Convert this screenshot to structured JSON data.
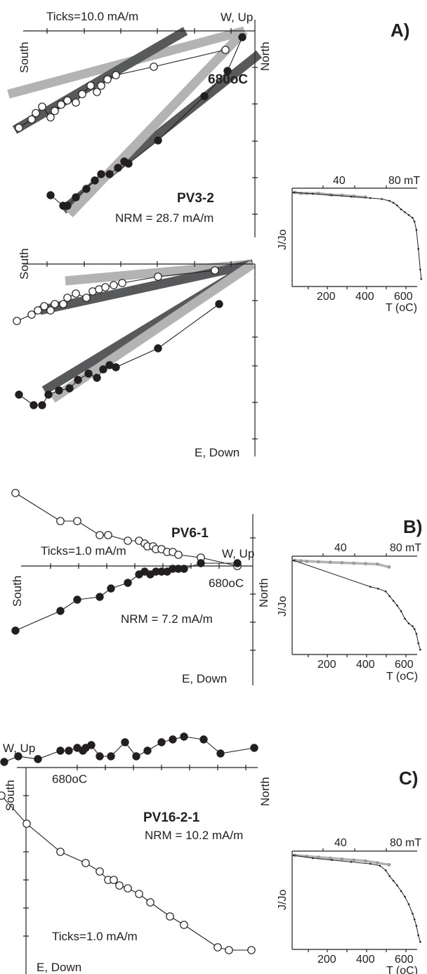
{
  "chart_data": [
    {
      "panel": "A)",
      "type": "scatter",
      "sample": "PV3-2",
      "nrm": "NRM = 28.7 mA/m",
      "ticks_label": "Ticks=10.0 mA/m",
      "temp_label": "680oC",
      "axis_labels": {
        "south": "South",
        "north": "North",
        "up": "W, Up",
        "down": "E, Down"
      },
      "colors": {
        "fit_light": "#b3b3b3",
        "fit_dark": "#58595b",
        "ink": "#231f20"
      },
      "plot1": {
        "open_points": [
          [
            -10.7,
            -4.6
          ],
          [
            -10.1,
            -4.2
          ],
          [
            -9.9,
            -3.9
          ],
          [
            -9.6,
            -3.6
          ],
          [
            -9.2,
            -4.1
          ],
          [
            -9.0,
            -3.8
          ],
          [
            -8.7,
            -3.5
          ],
          [
            -8.4,
            -3.3
          ],
          [
            -8.0,
            -3.4
          ],
          [
            -7.7,
            -3.0
          ],
          [
            -7.3,
            -2.6
          ],
          [
            -7.0,
            -2.9
          ],
          [
            -6.8,
            -2.6
          ],
          [
            -6.5,
            -2.3
          ],
          [
            -6.1,
            -2.1
          ],
          [
            -4.3,
            -1.7
          ],
          [
            -0.9,
            -0.9
          ]
        ],
        "closed_points": [
          [
            -9.2,
            -7.8
          ],
          [
            -8.6,
            -8.3
          ],
          [
            -8.4,
            -8.3
          ],
          [
            -8.0,
            -7.9
          ],
          [
            -7.5,
            -7.5
          ],
          [
            -7.1,
            -7.1
          ],
          [
            -6.8,
            -6.8
          ],
          [
            -6.4,
            -6.8
          ],
          [
            -6.0,
            -6.5
          ],
          [
            -5.7,
            -6.2
          ],
          [
            -5.5,
            -6.3
          ],
          [
            -4.1,
            -5.2
          ],
          [
            -1.9,
            -3.1
          ],
          [
            -0.8,
            -1.9
          ],
          [
            -0.1,
            -0.3
          ]
        ],
        "fits": [
          {
            "color": "fit_light",
            "from": [
              -11.2,
              -3.0
            ],
            "to": [
              0.0,
              0.0
            ]
          },
          {
            "color": "fit_dark",
            "from": [
              -10.9,
              -4.7
            ],
            "to": [
              -2.8,
              0.0
            ]
          },
          {
            "color": "fit_dark",
            "from": [
              -8.6,
              -8.5
            ],
            "to": [
              0.7,
              -1.1
            ]
          },
          {
            "color": "fit_light",
            "from": [
              -8.3,
              -8.7
            ],
            "to": [
              0.0,
              0.0
            ]
          }
        ]
      },
      "plot2": {
        "open_points": [
          [
            -11.2,
            -2.7
          ],
          [
            -10.5,
            -2.4
          ],
          [
            -10.2,
            -2.2
          ],
          [
            -9.9,
            -2.0
          ],
          [
            -9.6,
            -2.2
          ],
          [
            -9.4,
            -1.9
          ],
          [
            -9.0,
            -1.9
          ],
          [
            -8.8,
            -1.6
          ],
          [
            -8.4,
            -1.4
          ],
          [
            -7.9,
            -1.6
          ],
          [
            -7.6,
            -1.3
          ],
          [
            -7.3,
            -1.2
          ],
          [
            -7.0,
            -1.1
          ],
          [
            -6.6,
            -1.0
          ],
          [
            -6.2,
            -0.9
          ],
          [
            -4.5,
            -0.6
          ],
          [
            -1.8,
            -0.3
          ]
        ],
        "closed_points": [
          [
            -11.1,
            -6.2
          ],
          [
            -10.4,
            -6.7
          ],
          [
            -10.0,
            -6.7
          ],
          [
            -9.7,
            -6.2
          ],
          [
            -9.2,
            -6.0
          ],
          [
            -8.7,
            -5.9
          ],
          [
            -8.3,
            -5.5
          ],
          [
            -7.8,
            -5.2
          ],
          [
            -7.4,
            -5.4
          ],
          [
            -7.1,
            -5.0
          ],
          [
            -6.8,
            -4.8
          ],
          [
            -6.5,
            -4.9
          ],
          [
            -4.5,
            -4.0
          ],
          [
            -1.6,
            -1.9
          ]
        ],
        "fits": [
          {
            "color": "fit_light",
            "from": [
              -8.9,
              -0.8
            ],
            "to": [
              0.0,
              0.0
            ]
          },
          {
            "color": "fit_dark",
            "from": [
              -10.1,
              -2.2
            ],
            "to": [
              0.0,
              0.0
            ]
          },
          {
            "color": "fit_dark",
            "from": [
              -9.9,
              -6.0
            ],
            "to": [
              0.0,
              0.0
            ]
          },
          {
            "color": "fit_light",
            "from": [
              -9.5,
              -6.4
            ],
            "to": [
              0.0,
              0.0
            ]
          }
        ]
      },
      "inset": {
        "xlabel": "T (oC)",
        "ylabel": "J/Jo",
        "top_axis_unit": "mT",
        "x_ticks": [
          "200",
          "400",
          "600"
        ],
        "top_ticks": [
          "40",
          "80"
        ],
        "thermal": [
          [
            0,
            1.0
          ],
          [
            100,
            0.985
          ],
          [
            200,
            0.97
          ],
          [
            300,
            0.955
          ],
          [
            400,
            0.94
          ],
          [
            460,
            0.93
          ],
          [
            500,
            0.91
          ],
          [
            520,
            0.89
          ],
          [
            540,
            0.86
          ],
          [
            560,
            0.82
          ],
          [
            580,
            0.79
          ],
          [
            600,
            0.76
          ],
          [
            620,
            0.73
          ],
          [
            630,
            0.69
          ],
          [
            640,
            0.6
          ],
          [
            650,
            0.4
          ],
          [
            660,
            0.18
          ],
          [
            665,
            0.08
          ]
        ],
        "af": [
          [
            0,
            1.0
          ],
          [
            5,
            0.99
          ],
          [
            10,
            0.99
          ],
          [
            20,
            0.99
          ],
          [
            30,
            0.975
          ],
          [
            40,
            0.97
          ],
          [
            50,
            0.96
          ],
          [
            60,
            0.95
          ]
        ]
      }
    },
    {
      "panel": "B)",
      "type": "scatter",
      "sample": "PV6-1",
      "nrm": "NRM = 7.2 mA/m",
      "ticks_label": "Ticks=1.0 mA/m",
      "temp_label": "680oC",
      "axis_labels": {
        "south": "South",
        "north": "North",
        "up": "W, Up",
        "down": "E, Down"
      },
      "open_points": [
        [
          -8.0,
          2.6
        ],
        [
          -6.4,
          1.6
        ],
        [
          -5.8,
          1.6
        ],
        [
          -5.0,
          1.1
        ],
        [
          -4.7,
          1.1
        ],
        [
          -4.0,
          0.9
        ],
        [
          -3.6,
          0.9
        ],
        [
          -3.4,
          0.8
        ],
        [
          -3.3,
          0.7
        ],
        [
          -3.1,
          0.7
        ],
        [
          -3.0,
          0.6
        ],
        [
          -2.8,
          0.6
        ],
        [
          -2.6,
          0.5
        ],
        [
          -2.4,
          0.5
        ],
        [
          -2.2,
          0.4
        ],
        [
          -1.4,
          0.3
        ],
        [
          -0.1,
          0.0
        ]
      ],
      "closed_points": [
        [
          -8.0,
          -2.3
        ],
        [
          -6.4,
          -1.6
        ],
        [
          -5.8,
          -1.2
        ],
        [
          -5.0,
          -1.1
        ],
        [
          -4.6,
          -0.8
        ],
        [
          -4.0,
          -0.6
        ],
        [
          -3.6,
          -0.3
        ],
        [
          -3.4,
          -0.2
        ],
        [
          -3.2,
          -0.3
        ],
        [
          -3.0,
          -0.2
        ],
        [
          -2.8,
          -0.2
        ],
        [
          -2.6,
          -0.2
        ],
        [
          -2.4,
          -0.1
        ],
        [
          -2.2,
          -0.1
        ],
        [
          -2.0,
          -0.1
        ],
        [
          -1.4,
          0.1
        ],
        [
          -0.1,
          0.1
        ]
      ],
      "inset": {
        "xlabel": "T (oC)",
        "ylabel": "J/Jo",
        "top_axis_unit": "mT",
        "x_ticks": [
          "200",
          "400",
          "600"
        ],
        "top_ticks": [
          "40",
          "80"
        ],
        "thermal": [
          [
            0,
            1.0
          ],
          [
            400,
            0.72
          ],
          [
            440,
            0.7
          ],
          [
            480,
            0.67
          ],
          [
            500,
            0.62
          ],
          [
            520,
            0.57
          ],
          [
            540,
            0.52
          ],
          [
            560,
            0.46
          ],
          [
            580,
            0.38
          ],
          [
            600,
            0.33
          ],
          [
            620,
            0.3
          ],
          [
            630,
            0.27
          ],
          [
            640,
            0.22
          ],
          [
            650,
            0.12
          ],
          [
            660,
            0.05
          ]
        ],
        "af": [
          [
            0,
            1.0
          ],
          [
            5,
            0.995
          ],
          [
            10,
            0.99
          ],
          [
            20,
            0.985
          ],
          [
            30,
            0.98
          ],
          [
            40,
            0.975
          ],
          [
            50,
            0.97
          ],
          [
            60,
            0.965
          ],
          [
            70,
            0.96
          ],
          [
            80,
            0.93
          ]
        ]
      }
    },
    {
      "panel": "C)",
      "type": "scatter",
      "sample": "PV16-2-1",
      "nrm": "NRM = 10.2 mA/m",
      "ticks_label": "Ticks=1.0 mA/m",
      "temp_label": "680oC",
      "axis_labels": {
        "south": "South",
        "north": "North",
        "up": "W, Up",
        "down": "E, Down"
      },
      "open_points": [
        [
          -9.1,
          -1.0
        ],
        [
          -8.2,
          -2.0
        ],
        [
          -7.0,
          -3.0
        ],
        [
          -6.1,
          -3.4
        ],
        [
          -5.6,
          -3.7
        ],
        [
          -5.3,
          -4.0
        ],
        [
          -5.1,
          -4.0
        ],
        [
          -4.9,
          -4.2
        ],
        [
          -4.6,
          -4.3
        ],
        [
          -4.2,
          -4.5
        ],
        [
          -3.8,
          -4.8
        ],
        [
          -3.1,
          -5.3
        ],
        [
          -2.6,
          -5.6
        ],
        [
          -1.4,
          -6.4
        ],
        [
          -1.0,
          -6.5
        ],
        [
          -0.2,
          -6.5
        ]
      ],
      "closed_points": [
        [
          -9.0,
          0.2
        ],
        [
          -8.5,
          0.4
        ],
        [
          -7.8,
          0.3
        ],
        [
          -7.0,
          0.6
        ],
        [
          -6.7,
          0.6
        ],
        [
          -6.4,
          0.7
        ],
        [
          -6.2,
          0.6
        ],
        [
          -6.1,
          0.7
        ],
        [
          -5.9,
          0.8
        ],
        [
          -5.6,
          0.4
        ],
        [
          -5.2,
          0.4
        ],
        [
          -4.7,
          0.9
        ],
        [
          -4.3,
          0.4
        ],
        [
          -3.9,
          0.6
        ],
        [
          -3.4,
          0.9
        ],
        [
          -3.0,
          1.0
        ],
        [
          -2.6,
          1.1
        ],
        [
          -1.9,
          1.0
        ],
        [
          -1.3,
          0.5
        ],
        [
          -0.1,
          0.7
        ]
      ],
      "inset": {
        "xlabel": "T (oC)",
        "ylabel": "J/Jo",
        "top_axis_unit": "mT",
        "x_ticks": [
          "200",
          "400",
          "600"
        ],
        "top_ticks": [
          "40",
          "80"
        ],
        "thermal": [
          [
            0,
            1.0
          ],
          [
            100,
            0.97
          ],
          [
            200,
            0.95
          ],
          [
            300,
            0.93
          ],
          [
            400,
            0.91
          ],
          [
            450,
            0.89
          ],
          [
            480,
            0.84
          ],
          [
            500,
            0.78
          ],
          [
            520,
            0.73
          ],
          [
            540,
            0.68
          ],
          [
            560,
            0.62
          ],
          [
            580,
            0.56
          ],
          [
            600,
            0.48
          ],
          [
            620,
            0.38
          ],
          [
            630,
            0.32
          ],
          [
            640,
            0.25
          ],
          [
            650,
            0.15
          ],
          [
            660,
            0.08
          ]
        ],
        "af": [
          [
            0,
            1.0
          ],
          [
            10,
            0.99
          ],
          [
            20,
            0.98
          ],
          [
            30,
            0.97
          ],
          [
            40,
            0.96
          ],
          [
            50,
            0.95
          ],
          [
            60,
            0.94
          ],
          [
            70,
            0.92
          ],
          [
            80,
            0.9
          ]
        ]
      }
    }
  ]
}
